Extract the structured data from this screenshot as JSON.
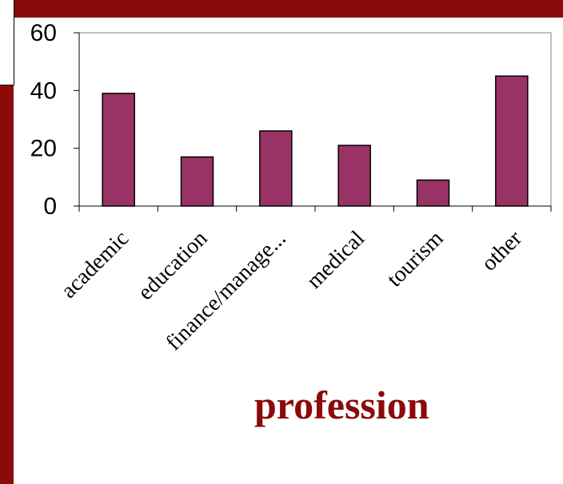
{
  "chart_data": {
    "type": "bar",
    "title": "profession",
    "categories": [
      "academic",
      "education",
      "finance/manage...",
      "medical",
      "tourism",
      "other"
    ],
    "values": [
      39,
      17,
      26,
      21,
      9,
      45
    ],
    "ylim": [
      0,
      60
    ],
    "yticks": [
      0,
      20,
      40,
      60
    ],
    "ytick_labels": [
      "0",
      "20",
      "40",
      "60"
    ],
    "grid": false,
    "colors": {
      "bar": "#993366",
      "title": "#8b0a0a",
      "background": "#8b0a0a"
    }
  }
}
